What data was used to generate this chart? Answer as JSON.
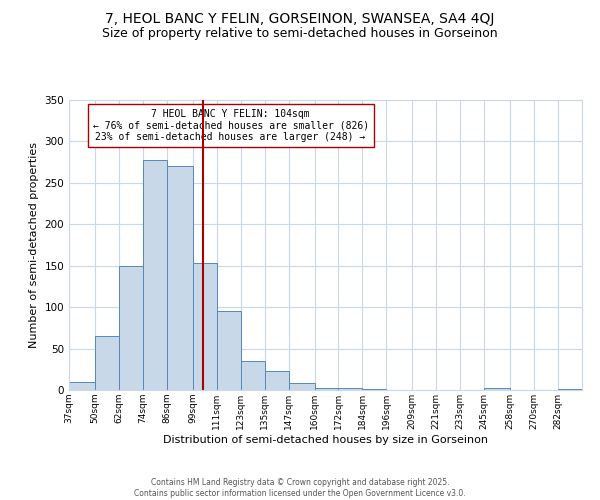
{
  "title": "7, HEOL BANC Y FELIN, GORSEINON, SWANSEA, SA4 4QJ",
  "subtitle": "Size of property relative to semi-detached houses in Gorseinon",
  "xlabel": "Distribution of semi-detached houses by size in Gorseinon",
  "ylabel": "Number of semi-detached properties",
  "bin_labels": [
    "37sqm",
    "50sqm",
    "62sqm",
    "74sqm",
    "86sqm",
    "99sqm",
    "111sqm",
    "123sqm",
    "135sqm",
    "147sqm",
    "160sqm",
    "172sqm",
    "184sqm",
    "196sqm",
    "209sqm",
    "221sqm",
    "233sqm",
    "245sqm",
    "258sqm",
    "270sqm",
    "282sqm"
  ],
  "bin_edges": [
    37,
    50,
    62,
    74,
    86,
    99,
    111,
    123,
    135,
    147,
    160,
    172,
    184,
    196,
    209,
    221,
    233,
    245,
    258,
    270,
    282
  ],
  "bar_heights": [
    10,
    65,
    150,
    278,
    270,
    153,
    95,
    35,
    23,
    9,
    3,
    2,
    1,
    0,
    0,
    0,
    0,
    2,
    0,
    0,
    1
  ],
  "bar_color": "#c8d8e8",
  "bar_edge_color": "#5588bb",
  "vline_x": 104,
  "vline_color": "#aa0000",
  "annotation_title": "7 HEOL BANC Y FELIN: 104sqm",
  "annotation_line1": "← 76% of semi-detached houses are smaller (826)",
  "annotation_line2": "23% of semi-detached houses are larger (248) →",
  "annotation_box_color": "#ffffff",
  "annotation_box_edge": "#aa0000",
  "ylim": [
    0,
    350
  ],
  "footer1": "Contains HM Land Registry data © Crown copyright and database right 2025.",
  "footer2": "Contains public sector information licensed under the Open Government Licence v3.0.",
  "bg_color": "#ffffff",
  "grid_color": "#c8d8e8",
  "title_fontsize": 10,
  "subtitle_fontsize": 9
}
